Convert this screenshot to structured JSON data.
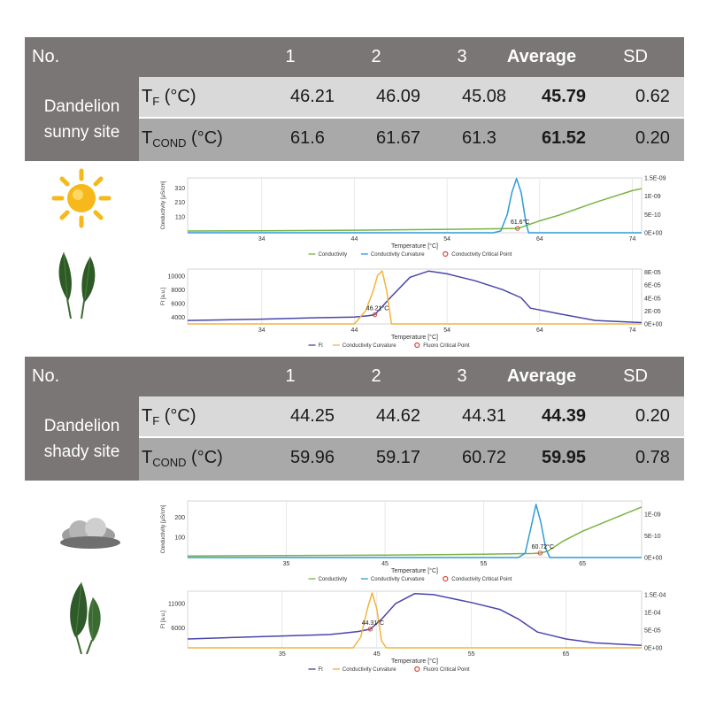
{
  "colors": {
    "header_bg": "#7a7675",
    "row_light": "#d9d9d9",
    "row_dark": "#a9a9a9",
    "conductivity": "#7cb342",
    "curvature_blue": "#2f9bd6",
    "ft_purple": "#4a45a8",
    "curvature_orange": "#f2b43c",
    "critical_point": "#d9473b"
  },
  "tables": [
    {
      "header": {
        "no": "No.",
        "c1": "1",
        "c2": "2",
        "c3": "3",
        "avg": "Average",
        "sd": "SD"
      },
      "site_label": "Dandelion sunny site",
      "rows": [
        {
          "var": "T",
          "sub": "F",
          "unit": " (°C)",
          "v1": "46.21",
          "v2": "46.09",
          "v3": "45.08",
          "avg": "45.79",
          "sd": "0.62"
        },
        {
          "var": "T",
          "sub": "COND",
          "unit": " (°C)",
          "v1": "61.6",
          "v2": "61.67",
          "v3": "61.3",
          "avg": "61.52",
          "sd": "0.20"
        }
      ]
    },
    {
      "header": {
        "no": "No.",
        "c1": "1",
        "c2": "2",
        "c3": "3",
        "avg": "Average",
        "sd": "SD"
      },
      "site_label": "Dandelion shady site",
      "rows": [
        {
          "var": "T",
          "sub": "F",
          "unit": " (°C)",
          "v1": "44.25",
          "v2": "44.62",
          "v3": "44.31",
          "avg": "44.39",
          "sd": "0.20"
        },
        {
          "var": "T",
          "sub": "COND",
          "unit": " (°C)",
          "v1": "59.96",
          "v2": "59.17",
          "v3": "60.72",
          "avg": "59.95",
          "sd": "0.78"
        }
      ]
    }
  ],
  "chart_data": [
    {
      "id": "sunny-conductivity",
      "type": "line",
      "xlabel": "Temperature [°C]",
      "ylabel": "Conductivity [µS/cm]",
      "xlim": [
        26,
        75
      ],
      "xticks": [
        "34",
        "44",
        "54",
        "64",
        "74"
      ],
      "xtick_values": [
        34,
        44,
        54,
        64,
        74
      ],
      "ylim": [
        0,
        380
      ],
      "yticks": [
        "110",
        "210",
        "310"
      ],
      "ytick_values": [
        110,
        210,
        310
      ],
      "y2lim": [
        0,
        1.5e-09
      ],
      "y2ticks": [
        "1.5E-09",
        "1E-09",
        "5E-10",
        "0E+00"
      ],
      "y2tick_values": [
        1.5e-09,
        1e-09,
        5e-10,
        0
      ],
      "series": [
        {
          "name": "Conductivity",
          "axis": "left",
          "color": "#7cb342",
          "x": [
            26,
            34,
            44,
            54,
            60,
            61.6,
            62,
            64,
            66,
            70,
            74,
            75
          ],
          "y": [
            12,
            14,
            18,
            24,
            28,
            30,
            38,
            82,
            120,
            210,
            292,
            305
          ]
        },
        {
          "name": "Conductivity Curvature",
          "axis": "right",
          "color": "#2f9bd6",
          "x": [
            26,
            59,
            59.8,
            60.5,
            61,
            61.5,
            62,
            62.5,
            62.8,
            75
          ],
          "y": [
            0,
            0,
            5e-11,
            5e-10,
            1.1e-09,
            1.48e-09,
            1.1e-09,
            3e-10,
            0,
            0
          ]
        }
      ],
      "critical_point": {
        "x": 61.6,
        "y": 30,
        "label": "61.6°C"
      },
      "legend": [
        "Conductivity",
        "Conductivity Curvature",
        "Conductivity Critical Point"
      ]
    },
    {
      "id": "sunny-fluorescence",
      "type": "line",
      "xlabel": "Temperature [°C]",
      "ylabel": "Ft [a.u.]",
      "xlim": [
        26,
        75
      ],
      "xticks": [
        "34",
        "44",
        "54",
        "64",
        "74"
      ],
      "xtick_values": [
        34,
        44,
        54,
        64,
        74
      ],
      "ylim": [
        3000,
        11000
      ],
      "yticks": [
        "4000",
        "6000",
        "8000",
        "10000"
      ],
      "ytick_values": [
        4000,
        6000,
        8000,
        10000
      ],
      "y2lim": [
        0,
        8.5e-05
      ],
      "y2ticks": [
        "8E-05",
        "6E-05",
        "4E-05",
        "2E-05",
        "0E+00"
      ],
      "y2tick_values": [
        8e-05,
        6e-05,
        4e-05,
        2e-05,
        0
      ],
      "series": [
        {
          "name": "Ft",
          "axis": "left",
          "color": "#4a45a8",
          "x": [
            26,
            34,
            40,
            44,
            45.5,
            46.21,
            48,
            50,
            52,
            54,
            57,
            60,
            62,
            63,
            66,
            70,
            75
          ],
          "y": [
            3500,
            3700,
            3900,
            4000,
            4200,
            4350,
            7000,
            9800,
            10700,
            10300,
            9300,
            8000,
            6800,
            5300,
            4500,
            3500,
            3200
          ]
        },
        {
          "name": "Conductivity Curvature",
          "axis": "right",
          "color": "#f2b43c",
          "x": [
            26,
            44,
            45.2,
            46,
            46.5,
            47,
            47.5,
            48,
            75
          ],
          "y": [
            0,
            0,
            2e-05,
            5e-05,
            7.5e-05,
            8.2e-05,
            5e-05,
            0,
            0
          ]
        }
      ],
      "critical_point": {
        "x": 46.21,
        "y": 4350,
        "label": "46.21°C"
      },
      "legend": [
        "Ft",
        "Conductivity Curvature",
        "Fluoro Critical Point"
      ]
    },
    {
      "id": "shady-conductivity",
      "type": "line",
      "xlabel": "Temperature [°C]",
      "ylabel": "Conductivity [µS/cm]",
      "xlim": [
        25,
        71
      ],
      "xticks": [
        "35",
        "45",
        "55",
        "65"
      ],
      "xtick_values": [
        35,
        45,
        55,
        65
      ],
      "ylim": [
        0,
        280
      ],
      "yticks": [
        "100",
        "200"
      ],
      "ytick_values": [
        100,
        200
      ],
      "y2lim": [
        0,
        1.3e-09
      ],
      "y2ticks": [
        "1E-09",
        "5E-10",
        "0E+00"
      ],
      "y2tick_values": [
        1e-09,
        5e-10,
        0
      ],
      "series": [
        {
          "name": "Conductivity",
          "axis": "left",
          "color": "#7cb342",
          "x": [
            25,
            35,
            45,
            55,
            60,
            60.72,
            61.5,
            63,
            65,
            68,
            71
          ],
          "y": [
            8,
            10,
            12,
            16,
            20,
            22,
            32,
            80,
            130,
            190,
            250
          ]
        },
        {
          "name": "Conductivity Curvature",
          "axis": "right",
          "color": "#2f9bd6",
          "x": [
            25,
            58.5,
            59.2,
            59.8,
            60.3,
            60.8,
            61.3,
            61.7,
            71
          ],
          "y": [
            0,
            0,
            1e-10,
            7e-10,
            1.22e-09,
            8e-10,
            2e-10,
            0,
            0
          ]
        }
      ],
      "critical_point": {
        "x": 60.72,
        "y": 22,
        "label": "60.72°C"
      },
      "legend": [
        "Conductivity",
        "Conductivity Curvature",
        "Conductivity Critical Point"
      ]
    },
    {
      "id": "shady-fluorescence",
      "type": "line",
      "xlabel": "Temperature [°C]",
      "ylabel": "Ft [a.u.]",
      "xlim": [
        25,
        73
      ],
      "xticks": [
        "35",
        "45",
        "55",
        "65"
      ],
      "xtick_values": [
        35,
        45,
        55,
        65
      ],
      "ylim": [
        2000,
        13500
      ],
      "yticks": [
        "6000",
        "11000"
      ],
      "ytick_values": [
        6000,
        11000
      ],
      "y2lim": [
        0,
        0.00016
      ],
      "y2ticks": [
        "1.5E-04",
        "1E-04",
        "5E-05",
        "0E+00"
      ],
      "y2tick_values": [
        0.00015,
        0.0001,
        5e-05,
        0
      ],
      "series": [
        {
          "name": "Ft",
          "axis": "left",
          "color": "#4a45a8",
          "x": [
            25,
            30,
            35,
            40,
            43,
            44.31,
            45.5,
            47,
            49,
            51,
            55,
            58,
            60,
            62,
            65,
            68,
            73
          ],
          "y": [
            3800,
            4100,
            4400,
            4700,
            5300,
            5800,
            7800,
            11000,
            13000,
            12800,
            11200,
            9800,
            7800,
            5200,
            3800,
            3000,
            2500
          ]
        },
        {
          "name": "Conductivity Curvature",
          "axis": "right",
          "color": "#f2b43c",
          "x": [
            25,
            42.5,
            43.3,
            44,
            44.5,
            45,
            45.5,
            46,
            73
          ],
          "y": [
            0,
            0,
            3e-05,
            0.00011,
            0.000155,
            0.00011,
            2e-05,
            0,
            0
          ]
        }
      ],
      "critical_point": {
        "x": 44.31,
        "y": 5800,
        "label": "44.31°C"
      },
      "legend": [
        "Ft",
        "Conductivity Curvature",
        "Fluoro Critical Point"
      ]
    }
  ],
  "icons": {
    "sun": "sun-icon",
    "cloud": "cloud-icon",
    "leaf": "leaf-icon"
  }
}
